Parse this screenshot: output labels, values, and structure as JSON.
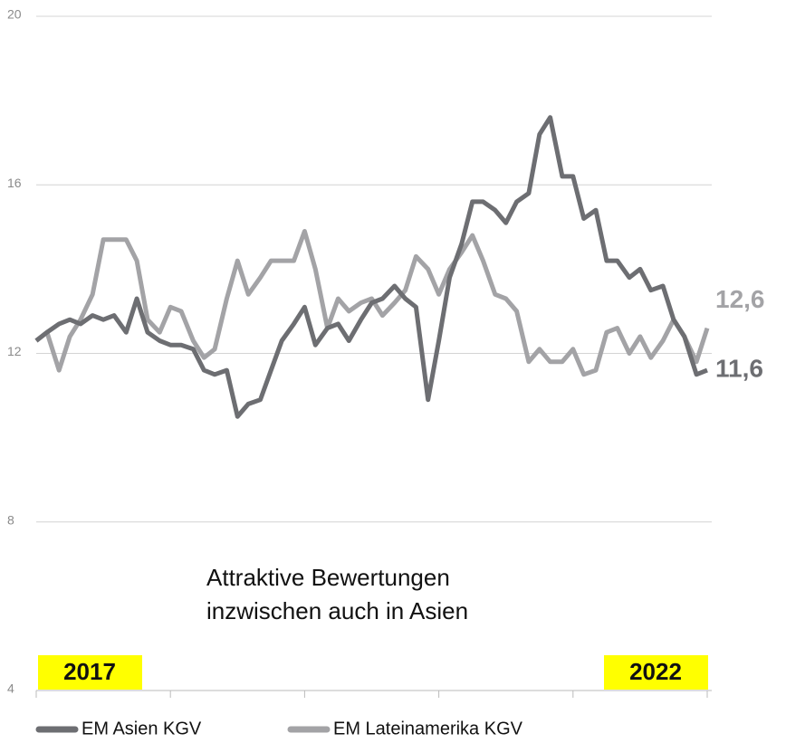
{
  "chart_data": {
    "type": "line",
    "annotation": [
      "Attraktive Bewertungen",
      "inzwischen auch in Asien"
    ],
    "period_labels": [
      "2017",
      "2022"
    ],
    "x": [
      2017,
      2017.08,
      2017.17,
      2017.25,
      2017.33,
      2017.42,
      2017.5,
      2017.58,
      2017.67,
      2017.75,
      2017.83,
      2017.92,
      2018,
      2018.08,
      2018.17,
      2018.25,
      2018.33,
      2018.42,
      2018.5,
      2018.58,
      2018.67,
      2018.75,
      2018.83,
      2018.92,
      2019,
      2019.08,
      2019.17,
      2019.25,
      2019.33,
      2019.42,
      2019.5,
      2019.58,
      2019.67,
      2019.75,
      2019.83,
      2019.92,
      2020,
      2020.08,
      2020.17,
      2020.25,
      2020.33,
      2020.42,
      2020.5,
      2020.58,
      2020.67,
      2020.75,
      2020.83,
      2020.92,
      2021,
      2021.08,
      2021.17,
      2021.25,
      2021.33,
      2021.42,
      2021.5,
      2021.58,
      2021.67,
      2021.75,
      2021.83,
      2021.92,
      2022
    ],
    "series": [
      {
        "name": "EM Asien KGV",
        "color": "#6d6e72",
        "end_label": "11,6",
        "values": [
          12.3,
          12.5,
          12.7,
          12.8,
          12.7,
          12.9,
          12.8,
          12.9,
          12.5,
          13.3,
          12.5,
          12.3,
          12.2,
          12.2,
          12.1,
          11.6,
          11.5,
          11.6,
          10.5,
          10.8,
          10.9,
          11.6,
          12.3,
          12.7,
          13.1,
          12.2,
          12.6,
          12.7,
          12.3,
          12.8,
          13.2,
          13.3,
          13.6,
          13.3,
          13.1,
          10.9,
          12.3,
          13.8,
          14.6,
          15.6,
          15.6,
          15.4,
          15.1,
          15.6,
          15.8,
          17.2,
          17.6,
          16.2,
          16.2,
          15.2,
          15.4,
          14.2,
          14.2,
          13.8,
          14.0,
          13.5,
          13.6,
          12.8,
          12.4,
          11.5,
          11.6
        ]
      },
      {
        "name": "EM Lateinamerika KGV",
        "color": "#a3a3a6",
        "end_label": "12,6",
        "values": [
          12.3,
          12.5,
          11.6,
          12.4,
          12.8,
          13.4,
          14.7,
          14.7,
          14.7,
          14.2,
          12.8,
          12.5,
          13.1,
          13.0,
          12.3,
          11.9,
          12.1,
          13.3,
          14.2,
          13.4,
          13.8,
          14.2,
          14.2,
          14.2,
          14.9,
          14.0,
          12.6,
          13.3,
          13.0,
          13.2,
          13.3,
          12.9,
          13.2,
          13.5,
          14.3,
          14.0,
          13.4,
          14.0,
          14.4,
          14.8,
          14.2,
          13.4,
          13.3,
          13.0,
          11.8,
          12.1,
          11.8,
          11.8,
          12.1,
          11.5,
          11.6,
          12.5,
          12.6,
          12.0,
          12.4,
          11.9,
          12.3,
          12.8,
          12.4,
          11.8,
          12.6
        ]
      }
    ],
    "xlim": [
      2017,
      2022
    ],
    "xticks": [
      2017,
      2018,
      2019,
      2020,
      2021,
      2022
    ],
    "ylim": [
      4,
      20
    ],
    "yticks": [
      4,
      8,
      12,
      16,
      20
    ],
    "grid": true,
    "highlight_color": "#ffff00"
  }
}
